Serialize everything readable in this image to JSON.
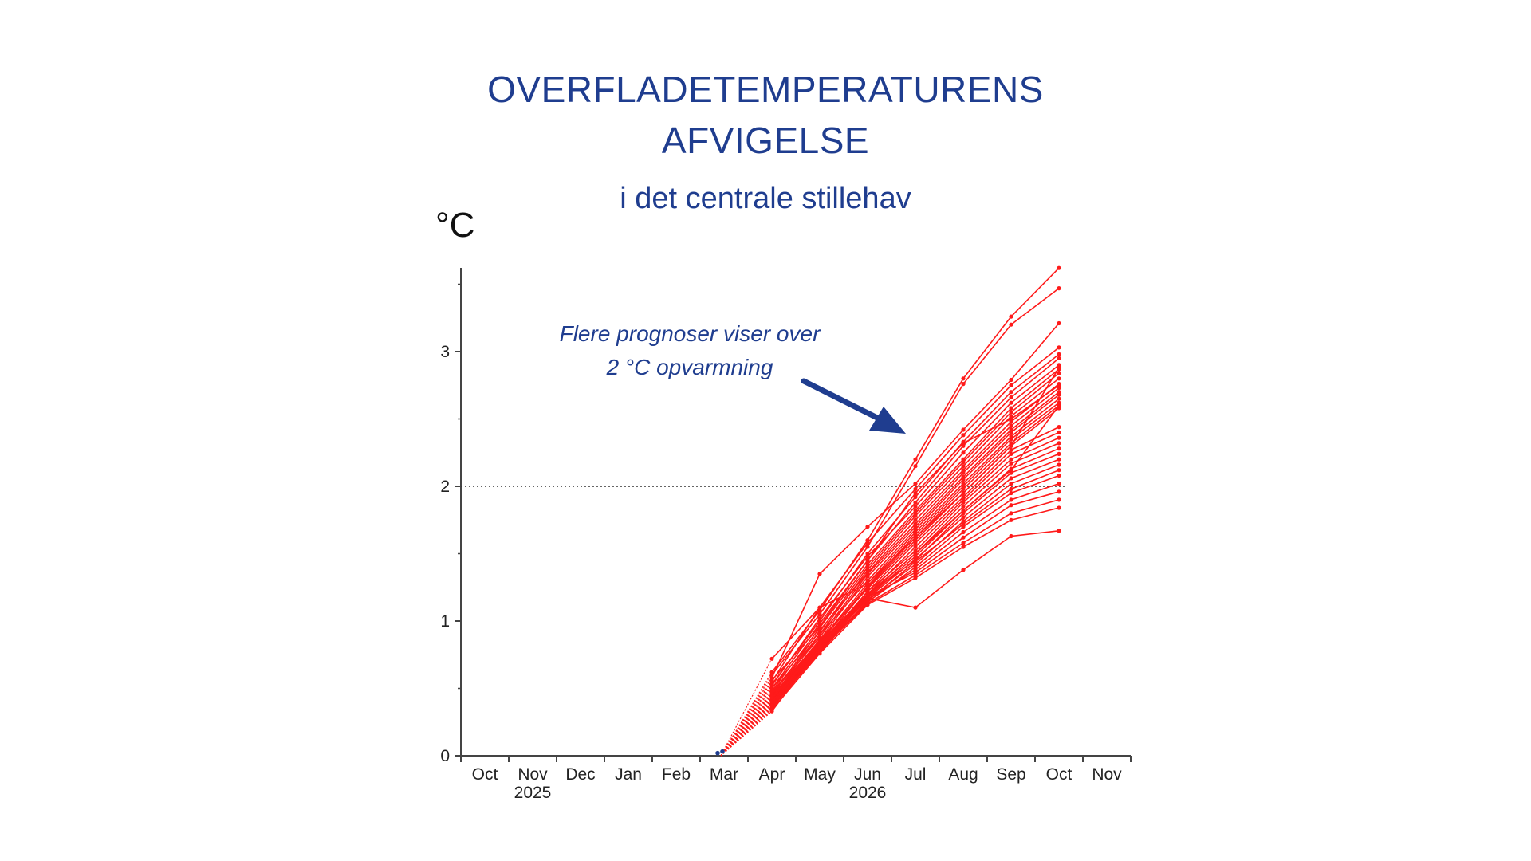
{
  "title_line1": "OVERFLADETEMPERATURENS",
  "title_line2": "AFVIGELSE",
  "subtitle": "i det centrale stillehav",
  "unit_label": "°C",
  "annotation_line1": "Flere prognoser viser over",
  "annotation_line2": "2  °C opvarmning",
  "colors": {
    "title": "#1f3d8f",
    "series": "#ff1a1a",
    "observed": "#1f3d8f",
    "threshold": "#333333"
  },
  "chart_data": {
    "type": "line",
    "ylabel": "°C",
    "ylim": [
      0,
      3.6
    ],
    "yticks": [
      "0",
      "1",
      "2",
      "3"
    ],
    "x_categories": [
      "Oct",
      "Nov",
      "Dec",
      "Jan",
      "Feb",
      "Mar",
      "Apr",
      "May",
      "Jun",
      "Jul",
      "Aug",
      "Sep",
      "Oct",
      "Nov"
    ],
    "year_labels": [
      {
        "label": "2025",
        "under": "Nov"
      },
      {
        "label": "2026",
        "under": "Jun"
      }
    ],
    "threshold": 2.0,
    "observed": [
      {
        "x": "Mar",
        "y": 0.02
      }
    ],
    "forecast_months": [
      "Mar",
      "Apr",
      "May",
      "Jun",
      "Jul",
      "Aug",
      "Sep",
      "Oct"
    ],
    "series": [
      {
        "values": [
          0.0,
          0.62,
          1.08,
          1.6,
          2.2,
          2.8,
          3.26,
          3.62
        ]
      },
      {
        "values": [
          0.0,
          0.6,
          1.05,
          1.55,
          2.15,
          2.76,
          3.2,
          3.47
        ]
      },
      {
        "values": [
          0.0,
          0.58,
          1.35,
          1.7,
          2.02,
          2.42,
          2.79,
          3.21
        ]
      },
      {
        "values": [
          0.0,
          0.55,
          1.1,
          1.58,
          1.98,
          2.38,
          2.75,
          3.03
        ]
      },
      {
        "values": [
          0.0,
          0.53,
          1.0,
          1.5,
          1.92,
          2.33,
          2.7,
          2.98
        ]
      },
      {
        "values": [
          0.0,
          0.5,
          0.98,
          1.45,
          1.88,
          2.3,
          2.66,
          2.95
        ]
      },
      {
        "values": [
          0.0,
          0.52,
          1.02,
          1.48,
          1.85,
          2.25,
          2.62,
          2.9
        ]
      },
      {
        "values": [
          0.0,
          0.48,
          0.95,
          1.42,
          1.82,
          2.2,
          2.58,
          2.87
        ]
      },
      {
        "values": [
          0.0,
          0.5,
          0.92,
          1.4,
          1.8,
          2.18,
          2.55,
          2.84
        ]
      },
      {
        "values": [
          0.0,
          0.47,
          0.9,
          1.38,
          1.78,
          2.15,
          2.52,
          2.8
        ]
      },
      {
        "values": [
          0.0,
          0.45,
          0.93,
          1.36,
          1.75,
          2.12,
          2.48,
          2.76
        ]
      },
      {
        "values": [
          0.0,
          0.46,
          0.88,
          1.35,
          1.72,
          2.1,
          2.45,
          2.73
        ]
      },
      {
        "values": [
          0.0,
          0.44,
          0.86,
          1.33,
          1.7,
          2.07,
          2.42,
          2.7
        ]
      },
      {
        "values": [
          0.0,
          0.43,
          0.9,
          1.3,
          1.68,
          2.05,
          2.4,
          2.68
        ]
      },
      {
        "values": [
          0.0,
          0.42,
          0.85,
          1.28,
          1.66,
          2.02,
          2.37,
          2.65
        ]
      },
      {
        "values": [
          0.0,
          0.45,
          0.84,
          1.26,
          1.64,
          2.0,
          2.35,
          2.62
        ]
      },
      {
        "values": [
          0.0,
          0.41,
          0.82,
          1.25,
          1.62,
          1.98,
          2.32,
          2.6
        ]
      },
      {
        "values": [
          0.0,
          0.44,
          0.86,
          1.24,
          1.6,
          1.95,
          2.3,
          2.58
        ]
      },
      {
        "values": [
          0.0,
          0.4,
          0.8,
          1.22,
          1.58,
          1.92,
          2.27,
          2.44
        ]
      },
      {
        "values": [
          0.0,
          0.42,
          0.83,
          1.2,
          1.55,
          1.9,
          2.24,
          2.4
        ]
      },
      {
        "values": [
          0.0,
          0.39,
          0.81,
          1.22,
          1.52,
          1.88,
          2.2,
          2.36
        ]
      },
      {
        "values": [
          0.0,
          0.41,
          0.79,
          1.19,
          1.5,
          1.85,
          2.17,
          2.32
        ]
      },
      {
        "values": [
          0.0,
          0.38,
          0.8,
          1.18,
          1.48,
          1.82,
          2.13,
          2.28
        ]
      },
      {
        "values": [
          0.0,
          0.4,
          0.84,
          1.2,
          1.45,
          1.8,
          2.1,
          2.24
        ]
      },
      {
        "values": [
          0.0,
          0.37,
          0.78,
          1.17,
          1.46,
          1.77,
          2.06,
          2.2
        ]
      },
      {
        "values": [
          0.0,
          0.39,
          0.82,
          1.16,
          1.42,
          1.74,
          2.02,
          2.16
        ]
      },
      {
        "values": [
          0.0,
          0.36,
          0.77,
          1.15,
          1.44,
          1.72,
          1.98,
          2.12
        ]
      },
      {
        "values": [
          0.0,
          0.38,
          0.79,
          1.14,
          1.4,
          1.7,
          1.95,
          2.08
        ]
      },
      {
        "values": [
          0.0,
          0.35,
          0.8,
          1.16,
          1.38,
          1.66,
          1.9,
          2.02
        ]
      },
      {
        "values": [
          0.0,
          0.4,
          0.82,
          1.18,
          1.36,
          1.62,
          1.86,
          1.96
        ]
      },
      {
        "values": [
          0.0,
          0.37,
          0.78,
          1.13,
          1.34,
          1.58,
          1.8,
          1.9
        ]
      },
      {
        "values": [
          0.0,
          0.34,
          0.76,
          1.12,
          1.32,
          1.55,
          1.75,
          1.84
        ]
      },
      {
        "values": [
          0.0,
          0.43,
          0.85,
          1.17,
          1.1,
          1.38,
          1.63,
          1.67
        ]
      },
      {
        "values": [
          0.0,
          0.72,
          1.1,
          1.28,
          1.62,
          1.95,
          2.3,
          2.88
        ]
      },
      {
        "values": [
          0.0,
          0.56,
          0.96,
          1.45,
          1.95,
          2.32,
          2.5,
          2.75
        ]
      },
      {
        "values": [
          0.0,
          0.33,
          0.8,
          1.2,
          1.5,
          1.82,
          2.12,
          2.6
        ]
      }
    ]
  }
}
